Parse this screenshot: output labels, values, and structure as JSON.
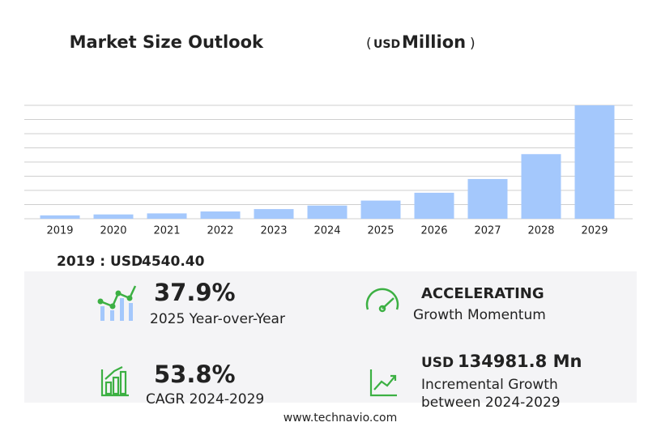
{
  "chart_data": {
    "type": "bar",
    "title": "Market Size Outlook",
    "unit_open": "(",
    "unit": "USD",
    "unit_label": "Million",
    "unit_close": ")",
    "categories": [
      "2019",
      "2020",
      "2021",
      "2022",
      "2023",
      "2024",
      "2025",
      "2026",
      "2027",
      "2028",
      "2029"
    ],
    "values": [
      4540.4,
      5800,
      7200,
      9800,
      13000,
      17748,
      24474,
      35000,
      53500,
      87000,
      152730
    ],
    "color": "#a4c8fc",
    "ylim": [
      0,
      152730
    ],
    "grid": true
  },
  "summary": {
    "base_label": "2019 : USD",
    "base_value": "4540.40",
    "yoy_value": "37.9%",
    "yoy_label": "2025 Year-over-Year",
    "momentum_value": "ACCELERATING",
    "momentum_label": "Growth Momentum",
    "cagr_value": "53.8%",
    "cagr_label": "CAGR 2024-2029",
    "incr_unit": "USD",
    "incr_value": "134981.8 Mn",
    "incr_label_1": "Incremental Growth",
    "incr_label_2": "between 2024-2029"
  },
  "footer": "www.technavio.com"
}
